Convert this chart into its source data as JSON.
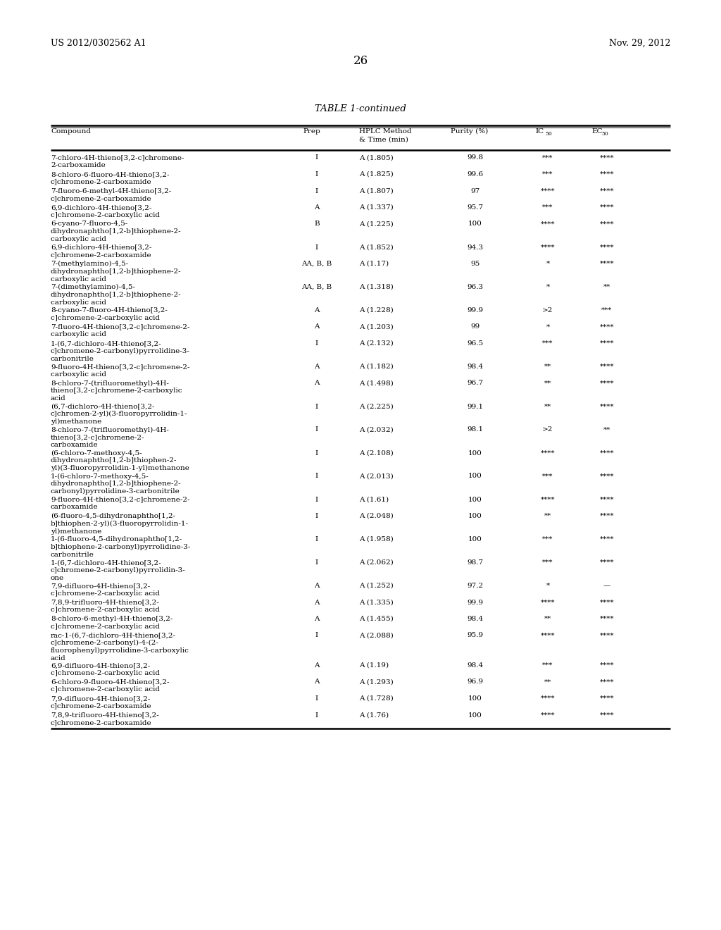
{
  "header_left": "US 2012/0302562 A1",
  "header_right": "Nov. 29, 2012",
  "page_number": "26",
  "table_title": "TABLE 1-continued",
  "rows": [
    [
      "7-chloro-4H-thieno[3,2-c]chromene-\n2-carboxamide",
      "I",
      "A (1.805)",
      "99.8",
      "***",
      "****"
    ],
    [
      "8-chloro-6-fluoro-4H-thieno[3,2-\nc]chromene-2-carboxamide",
      "I",
      "A (1.825)",
      "99.6",
      "***",
      "****"
    ],
    [
      "7-fluoro-6-methyl-4H-thieno[3,2-\nc]chromene-2-carboxamide",
      "I",
      "A (1.807)",
      "97",
      "****",
      "****"
    ],
    [
      "6,9-dichloro-4H-thieno[3,2-\nc]chromene-2-carboxylic acid",
      "A",
      "A (1.337)",
      "95.7",
      "***",
      "****"
    ],
    [
      "6-cyano-7-fluoro-4,5-\ndihydronaphtho[1,2-b]thiophene-2-\ncarboxylic acid",
      "B",
      "A (1.225)",
      "100",
      "****",
      "****"
    ],
    [
      "6,9-dichloro-4H-thieno[3,2-\nc]chromene-2-carboxamide",
      "I",
      "A (1.852)",
      "94.3",
      "****",
      "****"
    ],
    [
      "7-(methylamino)-4,5-\ndihydronaphtho[1,2-b]thiophene-2-\ncarboxylic acid",
      "AA, B, B",
      "A (1.17)",
      "95",
      "*",
      "****"
    ],
    [
      "7-(dimethylamino)-4,5-\ndihydronaphtho[1,2-b]thiophene-2-\ncarboxylic acid",
      "AA, B, B",
      "A (1.318)",
      "96.3",
      "*",
      "**"
    ],
    [
      "8-cyano-7-fluoro-4H-thieno[3,2-\nc]chromene-2-carboxylic acid",
      "A",
      "A (1.228)",
      "99.9",
      ">2",
      "***"
    ],
    [
      "7-fluoro-4H-thieno[3,2-c]chromene-2-\ncarboxylic acid",
      "A",
      "A (1.203)",
      "99",
      "*",
      "****"
    ],
    [
      "1-(6,7-dichloro-4H-thieno[3,2-\nc]chromene-2-carbonyl)pyrrolidine-3-\ncarbonitrile",
      "I",
      "A (2.132)",
      "96.5",
      "***",
      "****"
    ],
    [
      "9-fluoro-4H-thieno[3,2-c]chromene-2-\ncarboxylic acid",
      "A",
      "A (1.182)",
      "98.4",
      "**",
      "****"
    ],
    [
      "8-chloro-7-(trifluoromethyl)-4H-\nthieno[3,2-c]chromene-2-carboxylic\nacid",
      "A",
      "A (1.498)",
      "96.7",
      "**",
      "****"
    ],
    [
      "(6,7-dichloro-4H-thieno[3,2-\nc]chromen-2-yl)(3-fluoropyrrolidin-1-\nyl)methanone",
      "I",
      "A (2.225)",
      "99.1",
      "**",
      "****"
    ],
    [
      "8-chloro-7-(trifluoromethyl)-4H-\nthieno[3,2-c]chromene-2-\ncarboxamide",
      "I",
      "A (2.032)",
      "98.1",
      ">2",
      "**"
    ],
    [
      "(6-chloro-7-methoxy-4,5-\ndihydronaphtho[1,2-b]thiophen-2-\nyl)(3-fluoropyrrolidin-1-yl)methanone",
      "I",
      "A (2.108)",
      "100",
      "****",
      "****"
    ],
    [
      "1-(6-chloro-7-methoxy-4,5-\ndihydronaphtho[1,2-b]thiophene-2-\ncarbonyl)pyrrolidine-3-carbonitrile",
      "I",
      "A (2.013)",
      "100",
      "***",
      "****"
    ],
    [
      "9-fluoro-4H-thieno[3,2-c]chromene-2-\ncarboxamide",
      "I",
      "A (1.61)",
      "100",
      "****",
      "****"
    ],
    [
      "(6-fluoro-4,5-dihydronaphtho[1,2-\nb]thiophen-2-yl)(3-fluoropyrrolidin-1-\nyl)methanone",
      "I",
      "A (2.048)",
      "100",
      "**",
      "****"
    ],
    [
      "1-(6-fluoro-4,5-dihydronaphtho[1,2-\nb]thiophene-2-carbonyl)pyrrolidine-3-\ncarbonitrile",
      "I",
      "A (1.958)",
      "100",
      "***",
      "****"
    ],
    [
      "1-(6,7-dichloro-4H-thieno[3,2-\nc]chromene-2-carbonyl)pyrrolidin-3-\none",
      "I",
      "A (2.062)",
      "98.7",
      "***",
      "****"
    ],
    [
      "7,9-difluoro-4H-thieno[3,2-\nc]chromene-2-carboxylic acid",
      "A",
      "A (1.252)",
      "97.2",
      "*",
      "—"
    ],
    [
      "7,8,9-trifluoro-4H-thieno[3,2-\nc]chromene-2-carboxylic acid",
      "A",
      "A (1.335)",
      "99.9",
      "****",
      "****"
    ],
    [
      "8-chloro-6-methyl-4H-thieno[3,2-\nc]chromene-2-carboxylic acid",
      "A",
      "A (1.455)",
      "98.4",
      "**",
      "****"
    ],
    [
      "rac-1-(6,7-dichloro-4H-thieno[3,2-\nc]chromene-2-carbonyl)-4-(2-\nfluorophenyl)pyrrolidine-3-carboxylic\nacid",
      "I",
      "A (2.088)",
      "95.9",
      "****",
      "****"
    ],
    [
      "6,9-difluoro-4H-thieno[3,2-\nc]chromene-2-carboxylic acid",
      "A",
      "A (1.19)",
      "98.4",
      "***",
      "****"
    ],
    [
      "6-chloro-9-fluoro-4H-thieno[3,2-\nc]chromene-2-carboxylic acid",
      "A",
      "A (1.293)",
      "96.9",
      "**",
      "****"
    ],
    [
      "7,9-difluoro-4H-thieno[3,2-\nc]chromene-2-carboxamide",
      "I",
      "A (1.728)",
      "100",
      "****",
      "****"
    ],
    [
      "7,8,9-trifluoro-4H-thieno[3,2-\nc]chromene-2-carboxamide",
      "I",
      "A (1.76)",
      "100",
      "****",
      "****"
    ]
  ],
  "font_size": 7.5,
  "header_font_size": 9.0,
  "page_num_font_size": 12,
  "title_font_size": 9.5
}
